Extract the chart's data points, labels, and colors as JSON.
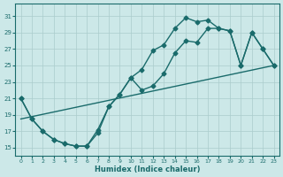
{
  "xlabel": "Humidex (Indice chaleur)",
  "xlim": [
    -0.5,
    23.5
  ],
  "ylim": [
    14,
    32.5
  ],
  "xticks": [
    0,
    1,
    2,
    3,
    4,
    5,
    6,
    7,
    8,
    9,
    10,
    11,
    12,
    13,
    14,
    15,
    16,
    17,
    18,
    19,
    20,
    21,
    22,
    23
  ],
  "yticks": [
    15,
    17,
    19,
    21,
    23,
    25,
    27,
    29,
    31
  ],
  "bg_color": "#cce8e8",
  "grid_color": "#aacccc",
  "line_color": "#1a6b6b",
  "curve1_x": [
    0,
    1,
    2,
    3,
    4,
    5,
    6,
    7,
    8,
    9,
    10,
    11,
    12,
    13,
    14,
    15,
    16,
    17,
    18,
    19,
    20,
    21,
    22,
    23
  ],
  "curve1_y": [
    21.0,
    18.5,
    17.0,
    16.0,
    15.5,
    15.2,
    15.2,
    16.8,
    20.0,
    21.5,
    23.5,
    24.5,
    26.8,
    27.5,
    29.5,
    30.8,
    30.3,
    30.5,
    29.5,
    29.2,
    25.0,
    29.0,
    27.0,
    25.0
  ],
  "curve2_x": [
    0,
    1,
    2,
    3,
    4,
    5,
    6,
    7,
    8,
    9,
    10,
    11,
    12,
    13,
    14,
    15,
    16,
    17,
    18,
    19,
    20,
    21,
    22,
    23
  ],
  "curve2_y": [
    21.0,
    18.5,
    17.0,
    16.0,
    15.5,
    15.2,
    15.2,
    17.2,
    20.0,
    21.5,
    23.5,
    22.0,
    22.5,
    24.0,
    26.5,
    28.0,
    27.8,
    29.5,
    29.5,
    29.2,
    25.0,
    29.0,
    27.0,
    25.0
  ],
  "line3_x": [
    0,
    23
  ],
  "line3_y": [
    18.5,
    25.0
  ],
  "marker": "D",
  "markersize": 2.5,
  "linewidth": 1.0
}
